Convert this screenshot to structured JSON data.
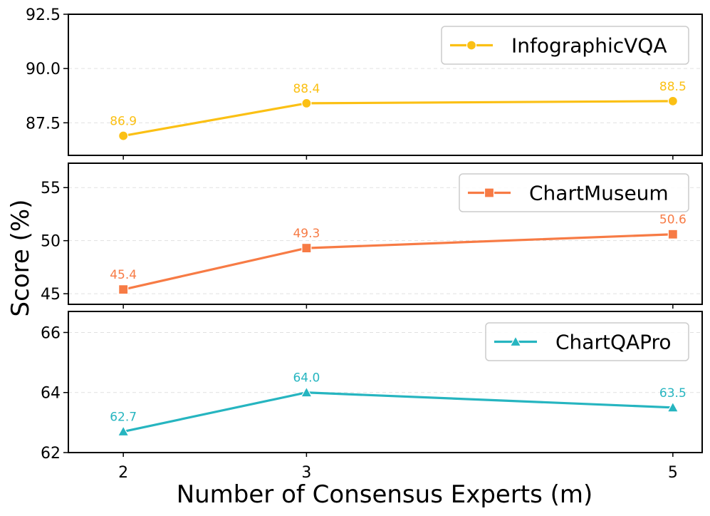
{
  "figure": {
    "ylabel": "Score (%)",
    "xlabel": "Number of Consensus Experts (m)"
  },
  "chart_data": [
    {
      "type": "line",
      "x": [
        2,
        3,
        5
      ],
      "xticks": [
        "2",
        "3",
        "5"
      ],
      "xlim": [
        1.7,
        5.16
      ],
      "ylim": [
        86,
        92.5
      ],
      "yticks": [
        "87.5",
        "90.0",
        "92.5"
      ],
      "grid": "dashed horizontal",
      "legend_position": "top-right",
      "series": [
        {
          "name": "InfographicVQA",
          "values": [
            86.9,
            88.4,
            88.5
          ],
          "labels": [
            "86.9",
            "88.4",
            "88.5"
          ],
          "marker": "circle",
          "color": "#FBC014"
        }
      ]
    },
    {
      "type": "line",
      "x": [
        2,
        3,
        5
      ],
      "xticks": [
        "2",
        "3",
        "5"
      ],
      "xlim": [
        1.7,
        5.16
      ],
      "ylim": [
        44,
        57.3
      ],
      "yticks": [
        "45",
        "50",
        "55"
      ],
      "grid": "dashed horizontal",
      "legend_position": "top-right",
      "series": [
        {
          "name": "ChartMuseum",
          "values": [
            45.4,
            49.3,
            50.6
          ],
          "labels": [
            "45.4",
            "49.3",
            "50.6"
          ],
          "marker": "square",
          "color": "#F77B45"
        }
      ]
    },
    {
      "type": "line",
      "x": [
        2,
        3,
        5
      ],
      "xticks": [
        "2",
        "3",
        "5"
      ],
      "xlim": [
        1.7,
        5.16
      ],
      "ylim": [
        62,
        66.7
      ],
      "yticks": [
        "62",
        "64",
        "66"
      ],
      "grid": "dashed horizontal",
      "legend_position": "top-right",
      "series": [
        {
          "name": "ChartQAPro",
          "values": [
            62.7,
            64.0,
            63.5
          ],
          "labels": [
            "62.7",
            "64.0",
            "63.5"
          ],
          "marker": "triangle",
          "color": "#26B5C0"
        }
      ]
    }
  ]
}
